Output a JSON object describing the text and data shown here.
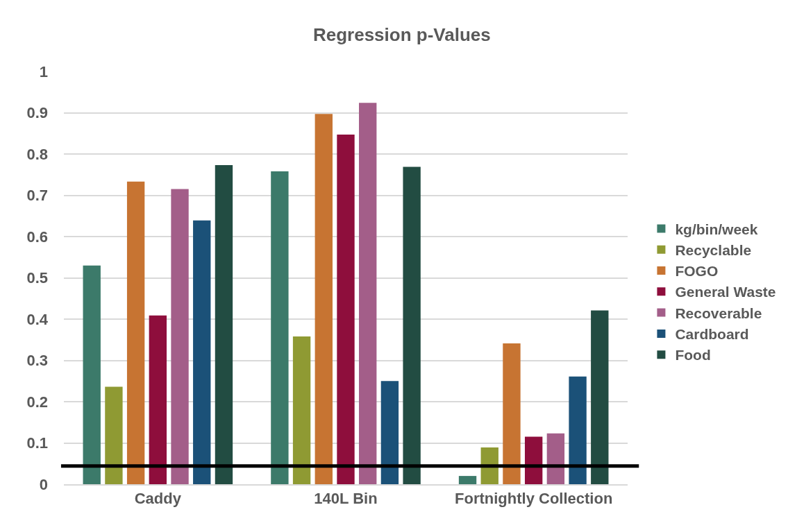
{
  "chart_data": {
    "type": "bar",
    "title": "Regression p-Values",
    "categories": [
      "Caddy",
      "140L Bin",
      "Fortnightly Collection"
    ],
    "series": [
      {
        "name": "kg/bin/week",
        "color": "#3c7a6a",
        "values": [
          0.53,
          0.758,
          0.02
        ]
      },
      {
        "name": "Recyclable",
        "color": "#8f9a33",
        "values": [
          0.236,
          0.358,
          0.089
        ]
      },
      {
        "name": "FOGO",
        "color": "#c77432",
        "values": [
          0.733,
          0.897,
          0.341
        ]
      },
      {
        "name": "General Waste",
        "color": "#8e0e3c",
        "values": [
          0.409,
          0.847,
          0.115
        ]
      },
      {
        "name": "Recoverable",
        "color": "#a35e89",
        "values": [
          0.715,
          0.924,
          0.123
        ]
      },
      {
        "name": "Cardboard",
        "color": "#1b5178",
        "values": [
          0.639,
          0.25,
          0.261
        ]
      },
      {
        "name": "Food",
        "color": "#224c42",
        "values": [
          0.773,
          0.769,
          0.421
        ]
      }
    ],
    "ylim": [
      0,
      1
    ],
    "yticks": [
      0,
      0.1,
      0.2,
      0.3,
      0.4,
      0.5,
      0.6,
      0.7,
      0.8,
      0.9,
      1
    ],
    "grid": "y",
    "legend": "right",
    "ref_lines": [
      {
        "axis": "y",
        "value": 0.044,
        "color": "#000000"
      }
    ]
  }
}
